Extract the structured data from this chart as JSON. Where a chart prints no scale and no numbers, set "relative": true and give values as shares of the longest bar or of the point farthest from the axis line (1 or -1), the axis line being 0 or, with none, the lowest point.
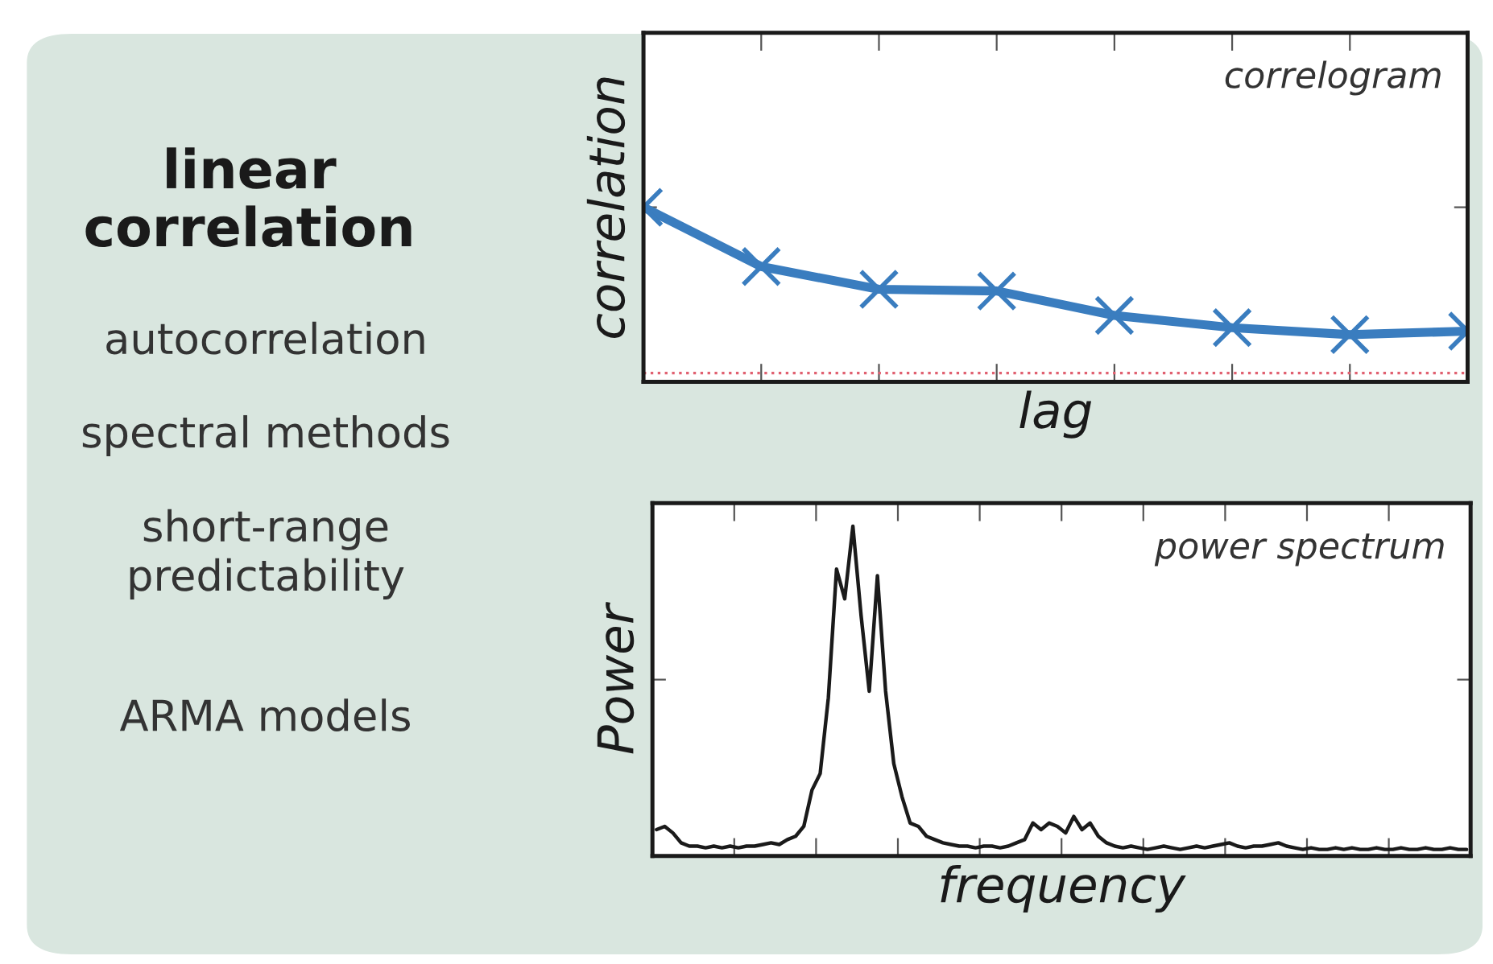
{
  "chart_data": [
    {
      "type": "other",
      "title": "linear correlation",
      "annotations": [
        "autocorrelation",
        "spectral methods",
        "short-range predictability",
        "ARMA models"
      ]
    },
    {
      "type": "line",
      "title": "correlogram",
      "xlabel": "lag",
      "ylabel": "correlation",
      "relative": true,
      "tick_labels": false,
      "grid": false,
      "marker": "cross",
      "line_style": "solid",
      "categories": [
        null,
        null,
        null,
        null,
        null,
        null,
        null,
        null
      ],
      "series": [
        {
          "color": "#3a7dbf",
          "values": [
            1.0,
            0.66,
            0.53,
            0.52,
            0.38,
            0.31,
            0.27,
            0.29
          ]
        }
      ],
      "ref_lines": [
        {
          "axis": "y",
          "value": 0.05,
          "label": null,
          "color": "#e06070",
          "line_style": "dotted"
        }
      ]
    },
    {
      "type": "line",
      "title": "power spectrum",
      "xlabel": "frequency",
      "ylabel": "Power",
      "relative": true,
      "tick_labels": false,
      "grid": false,
      "marker": "none",
      "line_style": "solid",
      "categories": [
        null,
        null,
        null,
        null,
        null,
        null,
        null,
        null,
        null,
        null,
        null,
        null,
        null,
        null,
        null,
        null,
        null,
        null,
        null,
        null,
        null,
        null,
        null,
        null,
        null,
        null,
        null,
        null,
        null,
        null,
        null,
        null,
        null,
        null,
        null,
        null,
        null,
        null,
        null,
        null,
        null,
        null,
        null,
        null,
        null,
        null,
        null,
        null,
        null,
        null,
        null,
        null,
        null,
        null,
        null,
        null,
        null,
        null,
        null,
        null,
        null,
        null,
        null,
        null,
        null,
        null,
        null,
        null,
        null,
        null,
        null,
        null,
        null,
        null,
        null,
        null,
        null,
        null,
        null,
        null,
        null,
        null,
        null,
        null,
        null,
        null,
        null,
        null,
        null,
        null,
        null,
        null,
        null,
        null,
        null,
        null,
        null,
        null,
        null,
        null
      ],
      "series": [
        {
          "color": "#1a1a1a",
          "values": [
            0.08,
            0.09,
            0.07,
            0.04,
            0.03,
            0.03,
            0.025,
            0.03,
            0.025,
            0.03,
            0.025,
            0.03,
            0.03,
            0.035,
            0.04,
            0.035,
            0.05,
            0.06,
            0.09,
            0.2,
            0.25,
            0.48,
            0.87,
            0.78,
            1.0,
            0.73,
            0.5,
            0.85,
            0.5,
            0.28,
            0.18,
            0.1,
            0.09,
            0.06,
            0.05,
            0.04,
            0.035,
            0.03,
            0.03,
            0.025,
            0.03,
            0.03,
            0.025,
            0.03,
            0.04,
            0.05,
            0.1,
            0.08,
            0.1,
            0.09,
            0.07,
            0.12,
            0.08,
            0.1,
            0.06,
            0.04,
            0.03,
            0.025,
            0.03,
            0.025,
            0.02,
            0.025,
            0.03,
            0.025,
            0.02,
            0.025,
            0.03,
            0.025,
            0.03,
            0.035,
            0.04,
            0.03,
            0.025,
            0.03,
            0.03,
            0.035,
            0.04,
            0.03,
            0.025,
            0.02,
            0.025,
            0.02,
            0.02,
            0.025,
            0.02,
            0.025,
            0.02,
            0.02,
            0.025,
            0.02,
            0.02,
            0.025,
            0.02,
            0.02,
            0.025,
            0.02,
            0.02,
            0.025,
            0.02,
            0.02
          ]
        }
      ]
    }
  ]
}
